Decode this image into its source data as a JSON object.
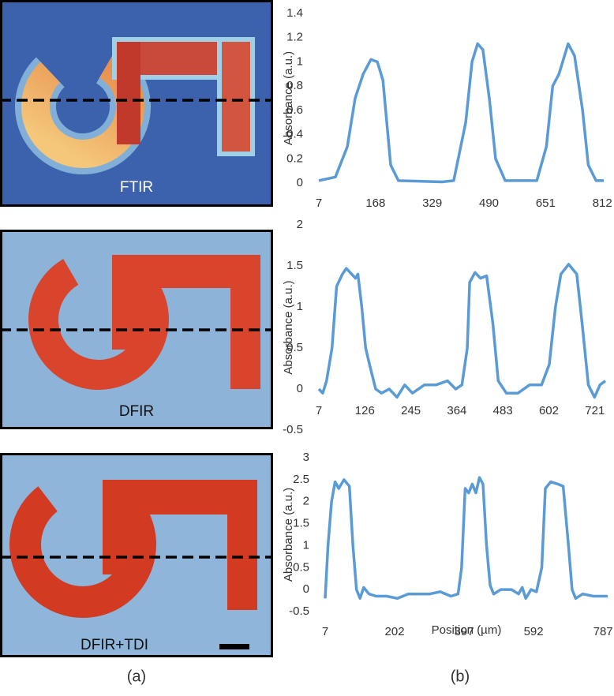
{
  "chart_data": [
    {
      "type": "line",
      "y_label": "Absorbance (a.u.)",
      "x": [
        7,
        54,
        88,
        110,
        133,
        155,
        173,
        189,
        200,
        211,
        233,
        357,
        390,
        424,
        442,
        458,
        473,
        491,
        509,
        536,
        626,
        653,
        671,
        689,
        715,
        733,
        756,
        772,
        794,
        816
      ],
      "series": [
        {
          "color": "#5b9bd5",
          "values": [
            0.02,
            0.05,
            0.3,
            0.7,
            0.9,
            1.02,
            1.0,
            0.85,
            0.5,
            0.15,
            0.02,
            0.01,
            0.02,
            0.5,
            1.0,
            1.15,
            1.1,
            0.7,
            0.2,
            0.02,
            0.02,
            0.3,
            0.8,
            0.9,
            1.15,
            1.05,
            0.6,
            0.15,
            0.02,
            0.02
          ]
        }
      ],
      "xlim": [
        7,
        816
      ],
      "xticks": [
        7,
        168,
        329,
        490,
        651,
        812
      ],
      "ylim": [
        0,
        1.4
      ],
      "yticks": [
        0,
        0.2,
        0.4,
        0.6,
        0.8,
        1,
        1.2,
        1.4
      ],
      "grid": false
    },
    {
      "type": "line",
      "y_label": "Absorbance (a.u.)",
      "x": [
        7,
        17,
        27,
        41,
        53,
        68,
        78,
        92,
        102,
        108,
        118,
        128,
        138,
        154,
        169,
        189,
        209,
        229,
        249,
        280,
        310,
        340,
        361,
        377,
        391,
        397,
        411,
        425,
        441,
        457,
        471,
        492,
        522,
        552,
        583,
        603,
        619,
        633,
        653,
        674,
        688,
        704,
        720,
        734,
        748
      ],
      "series": [
        {
          "color": "#5b9bd5",
          "values": [
            0,
            -0.05,
            0.1,
            0.5,
            1.25,
            1.4,
            1.47,
            1.4,
            1.35,
            1.4,
            1.0,
            0.5,
            0.3,
            0.0,
            -0.05,
            0.0,
            -0.1,
            0.05,
            -0.05,
            0.05,
            0.05,
            0.1,
            0.0,
            0.05,
            0.5,
            1.3,
            1.42,
            1.35,
            1.38,
            0.8,
            0.1,
            -0.05,
            -0.05,
            0.05,
            0.05,
            0.3,
            1.0,
            1.4,
            1.52,
            1.4,
            0.8,
            0.05,
            -0.1,
            0.05,
            0.1
          ]
        }
      ],
      "xlim": [
        7,
        750
      ],
      "xticks": [
        7,
        126,
        245,
        364,
        483,
        602,
        721
      ],
      "ylim": [
        -0.5,
        2
      ],
      "yticks": [
        -0.5,
        0,
        0.5,
        1,
        1.5,
        2
      ],
      "grid": false
    },
    {
      "type": "line",
      "y_label": "Absorbance (a.u.)",
      "x_label": "Position (µm)",
      "x": [
        7,
        15,
        25,
        35,
        45,
        60,
        75,
        85,
        95,
        105,
        115,
        130,
        150,
        180,
        210,
        240,
        270,
        300,
        330,
        360,
        380,
        390,
        400,
        410,
        420,
        430,
        440,
        450,
        460,
        470,
        480,
        500,
        530,
        550,
        560,
        570,
        585,
        600,
        615,
        625,
        640,
        660,
        675,
        690,
        700,
        710,
        730,
        760,
        800
      ],
      "series": [
        {
          "color": "#5b9bd5",
          "values": [
            -0.2,
            1,
            2.0,
            2.45,
            2.3,
            2.5,
            2.35,
            1.0,
            0,
            -0.2,
            0.05,
            -0.1,
            -0.15,
            -0.15,
            -0.2,
            -0.1,
            -0.1,
            -0.1,
            -0.05,
            -0.15,
            -0.1,
            0.5,
            2.3,
            2.2,
            2.4,
            2.2,
            2.55,
            2.4,
            1.0,
            0.1,
            -0.1,
            0,
            0.0,
            -0.1,
            0.05,
            -0.2,
            0,
            -0.05,
            0.5,
            2.3,
            2.45,
            2.4,
            2.35,
            1.0,
            0,
            -0.2,
            -0.1,
            -0.15,
            -0.15
          ]
        }
      ],
      "xlim": [
        7,
        800
      ],
      "xticks": [
        7,
        202,
        397,
        592,
        787
      ],
      "ylim": [
        -0.5,
        3
      ],
      "yticks": [
        -0.5,
        0,
        0.5,
        1,
        1.5,
        2,
        2.5,
        3
      ],
      "grid": false
    }
  ],
  "image_panels": [
    {
      "label": "FTIR"
    },
    {
      "label": "DFIR"
    },
    {
      "label": "DFIR+TDI"
    }
  ],
  "panel_labels": [
    "(a)",
    "(b)"
  ]
}
